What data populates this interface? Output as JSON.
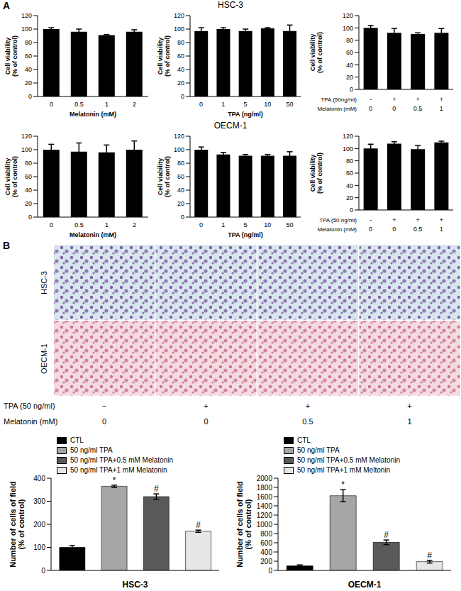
{
  "figure": {
    "panel_a": {
      "label": "A",
      "row_titles": [
        "HSC-3",
        "OECM-1"
      ]
    },
    "panel_b": {
      "label": "B",
      "image_rows": [
        "HSC-3",
        "OECM-1"
      ],
      "treatments": [
        {
          "label": "TPA (50 ng/ml)",
          "cells": [
            "−",
            "+",
            "+",
            "+"
          ]
        },
        {
          "label": "Melatonin (mM)",
          "cells": [
            "0",
            "0",
            "0.5",
            "1"
          ]
        }
      ]
    }
  },
  "chart_data": [
    {
      "type": "bar",
      "xlabel": "Melatonin (mM)",
      "ylabel": "Cell viability (% of control)",
      "categories": [
        "0",
        "0.5",
        "1",
        "2"
      ],
      "values": [
        100,
        96,
        91,
        96
      ],
      "errors": [
        2,
        4,
        1,
        3
      ],
      "color": "#000000",
      "ylim": [
        0,
        120
      ],
      "yticks": [
        0,
        20,
        40,
        60,
        80,
        100,
        120
      ]
    },
    {
      "type": "bar",
      "xlabel": "TPA (ng/ml)",
      "ylabel": "Cell viability (% of control)",
      "categories": [
        "0",
        "1",
        "5",
        "10",
        "50"
      ],
      "values": [
        97,
        100,
        97,
        101,
        97
      ],
      "errors": [
        5,
        2,
        3,
        1,
        9
      ],
      "color": "#000000",
      "ylim": [
        0,
        120
      ],
      "yticks": [
        0,
        20,
        40,
        60,
        80,
        100,
        120
      ]
    },
    {
      "type": "bar",
      "xlabel": "TPA (50ng/ml)",
      "xlabel_2": "Melatonin (mM)",
      "ylabel": "Cell viability (% of control)",
      "categories": [
        "-",
        "+",
        "+",
        "+"
      ],
      "categories_2": [
        "0",
        "0",
        "0.5",
        "1"
      ],
      "values": [
        100,
        92,
        90,
        92
      ],
      "errors": [
        4,
        7,
        2,
        7
      ],
      "color": "#000000",
      "ylim": [
        0,
        120
      ],
      "yticks": [
        0,
        20,
        40,
        60,
        80,
        100,
        120
      ]
    },
    {
      "type": "bar",
      "xlabel": "Melatonin (mM)",
      "ylabel": "Cell viability (% of control)",
      "categories": [
        "0",
        "0.5",
        "1",
        "2"
      ],
      "values": [
        100,
        97,
        96,
        100
      ],
      "errors": [
        8,
        13,
        11,
        13
      ],
      "color": "#000000",
      "ylim": [
        0,
        120
      ],
      "yticks": [
        0,
        20,
        40,
        60,
        80,
        100,
        120
      ]
    },
    {
      "type": "bar",
      "xlabel": "TPA (ng/ml)",
      "ylabel": "Cell viability (% of control)",
      "categories": [
        "0",
        "1",
        "5",
        "10",
        "50"
      ],
      "values": [
        100,
        93,
        91,
        91,
        91
      ],
      "errors": [
        4,
        3,
        2,
        2,
        6
      ],
      "color": "#000000",
      "ylim": [
        0,
        120
      ],
      "yticks": [
        0,
        20,
        40,
        60,
        80,
        100,
        120
      ]
    },
    {
      "type": "bar",
      "xlabel": "TPA (50 ng/ml)",
      "xlabel_2": "Melatonin (mM)",
      "ylabel": "Cell viability (% of control)",
      "categories": [
        "-",
        "+",
        "+",
        "+"
      ],
      "categories_2": [
        "0",
        "0",
        "0.5",
        "1"
      ],
      "values": [
        100,
        108,
        99,
        110
      ],
      "errors": [
        7,
        3,
        6,
        2
      ],
      "color": "#000000",
      "ylim": [
        0,
        120
      ],
      "yticks": [
        0,
        20,
        40,
        60,
        80,
        100,
        120
      ]
    },
    {
      "type": "bar",
      "xlabel": "HSC-3",
      "ylabel": "Number of cells of field (% of control)",
      "categories": [
        "CTL",
        "50 ng/ml TPA",
        "50 ng/ml TPA+0.5 mM Melatonin",
        "50 ng/ml TPA+1 mM Melatonin"
      ],
      "values": [
        100,
        365,
        320,
        170
      ],
      "errors": [
        8,
        5,
        12,
        5
      ],
      "annotations": [
        null,
        "*",
        "#",
        "#"
      ],
      "colors": [
        "#000000",
        "#a6a6a6",
        "#595959",
        "#e6e6e6"
      ],
      "legend": "top",
      "tick_labels": "y",
      "ylim": [
        0,
        400
      ],
      "yticks": [
        0,
        100,
        200,
        300,
        400
      ]
    },
    {
      "type": "bar",
      "xlabel": "OECM-1",
      "ylabel": "Number of cells of field (% of control)",
      "categories": [
        "CTL",
        "50 ng/ml TPA",
        "50 ng/ml TPA+0.5 mM Melatonin",
        "50 ng/ml TPA+1 mM Meltonin"
      ],
      "values": [
        100,
        1620,
        610,
        190
      ],
      "errors": [
        20,
        130,
        50,
        30
      ],
      "annotations": [
        null,
        "*",
        "#",
        "#"
      ],
      "colors": [
        "#000000",
        "#a6a6a6",
        "#595959",
        "#e6e6e6"
      ],
      "legend": "top",
      "tick_labels": "y",
      "ylim": [
        0,
        2000
      ],
      "yticks": [
        0,
        200,
        400,
        600,
        800,
        1000,
        1200,
        1400,
        1600,
        1800,
        2000
      ]
    }
  ]
}
